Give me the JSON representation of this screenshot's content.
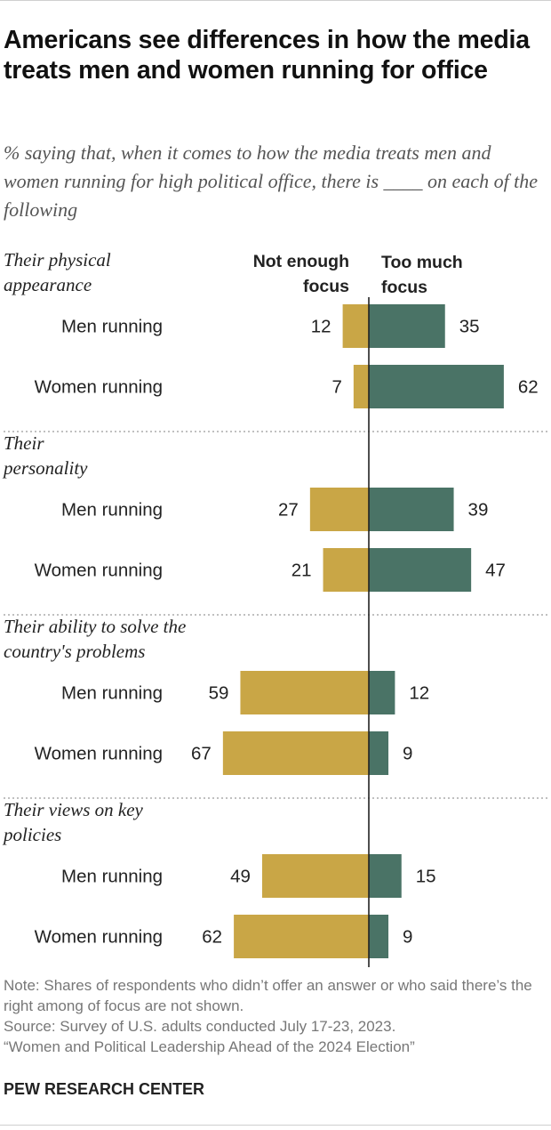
{
  "title": "Americans see differences in how the media treats men and women running for office",
  "subtitle": "% saying that, when it comes to how the media treats men and women running for high political office, there is ____ on each of the following",
  "colors": {
    "not_enough": "#C9A646",
    "too_much": "#4A7366"
  },
  "chart_data": {
    "type": "bar",
    "orientation": "horizontal-diverging",
    "legend": {
      "left": "Not enough focus",
      "right": "Too much focus"
    },
    "groups": [
      {
        "label": "Their physical appearance",
        "rows": [
          {
            "label": "Men running",
            "not_enough": 12,
            "too_much": 35
          },
          {
            "label": "Women running",
            "not_enough": 7,
            "too_much": 62
          }
        ]
      },
      {
        "label": "Their personality",
        "rows": [
          {
            "label": "Men running",
            "not_enough": 27,
            "too_much": 39
          },
          {
            "label": "Women running",
            "not_enough": 21,
            "too_much": 47
          }
        ]
      },
      {
        "label": "Their ability to solve the country's problems",
        "rows": [
          {
            "label": "Men running",
            "not_enough": 59,
            "too_much": 12
          },
          {
            "label": "Women running",
            "not_enough": 67,
            "too_much": 9
          }
        ]
      },
      {
        "label": "Their views on key policies",
        "rows": [
          {
            "label": "Men running",
            "not_enough": 49,
            "too_much": 15
          },
          {
            "label": "Women running",
            "not_enough": 62,
            "too_much": 9
          }
        ]
      }
    ]
  },
  "note": "Note: Shares of respondents who didn’t offer an answer or who said there’s the right among of focus are not shown.",
  "source": "Source: Survey of U.S. adults conducted July 17-23, 2023.",
  "report": "“Women and Political Leadership Ahead of the 2024 Election”",
  "brand": "PEW RESEARCH CENTER"
}
